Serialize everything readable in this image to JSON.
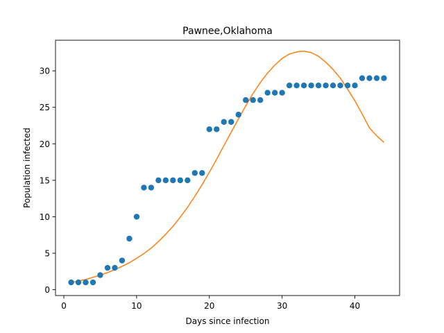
{
  "chart_data": {
    "type": "scatter",
    "title": "Pawnee,Oklahoma",
    "xlabel": "Days since infection",
    "ylabel": "Population infected",
    "xlim": [
      -1.15,
      46.15
    ],
    "ylim": [
      -0.8,
      34.2
    ],
    "xticks": [
      0,
      10,
      20,
      30,
      40
    ],
    "yticks": [
      0,
      5,
      10,
      15,
      20,
      25,
      30
    ],
    "grid": false,
    "series": [
      {
        "kind": "scatter",
        "color": "#1f77b4",
        "x": [
          1,
          2,
          3,
          4,
          5,
          6,
          7,
          8,
          9,
          10,
          11,
          12,
          13,
          14,
          15,
          16,
          17,
          18,
          19,
          20,
          21,
          22,
          23,
          24,
          25,
          26,
          27,
          28,
          29,
          30,
          31,
          32,
          33,
          34,
          35,
          36,
          37,
          38,
          39,
          40,
          41,
          42,
          43,
          44
        ],
        "y": [
          1,
          1,
          1,
          1,
          2,
          3,
          3,
          4,
          7,
          10,
          14,
          14,
          15,
          15,
          15,
          15,
          15,
          16,
          16,
          22,
          22,
          23,
          23,
          24,
          26,
          26,
          26,
          27,
          27,
          27,
          28,
          28,
          28,
          28,
          28,
          28,
          28,
          28,
          28,
          28,
          29,
          29,
          29,
          29
        ]
      },
      {
        "kind": "line",
        "color": "#ff7f0e",
        "x": [
          1,
          2,
          3,
          4,
          5,
          6,
          7,
          8,
          9,
          10,
          11,
          12,
          13,
          14,
          15,
          16,
          17,
          18,
          19,
          20,
          21,
          22,
          23,
          24,
          25,
          26,
          27,
          28,
          29,
          30,
          31,
          32,
          33,
          34,
          35,
          36,
          37,
          38,
          39,
          40,
          41,
          42,
          43,
          44
        ],
        "y": [
          1.0,
          1.2,
          1.4,
          1.7,
          2.0,
          2.35,
          2.75,
          3.2,
          3.7,
          4.3,
          4.95,
          5.7,
          6.6,
          7.6,
          8.7,
          9.95,
          11.3,
          12.8,
          14.4,
          16.1,
          17.9,
          19.75,
          21.6,
          23.4,
          25.2,
          26.9,
          28.4,
          29.7,
          30.8,
          31.7,
          32.3,
          32.6,
          32.7,
          32.5,
          32.0,
          31.2,
          30.2,
          29.0,
          27.5,
          25.9,
          24.1,
          22.2,
          21.1,
          20.2
        ]
      }
    ]
  }
}
